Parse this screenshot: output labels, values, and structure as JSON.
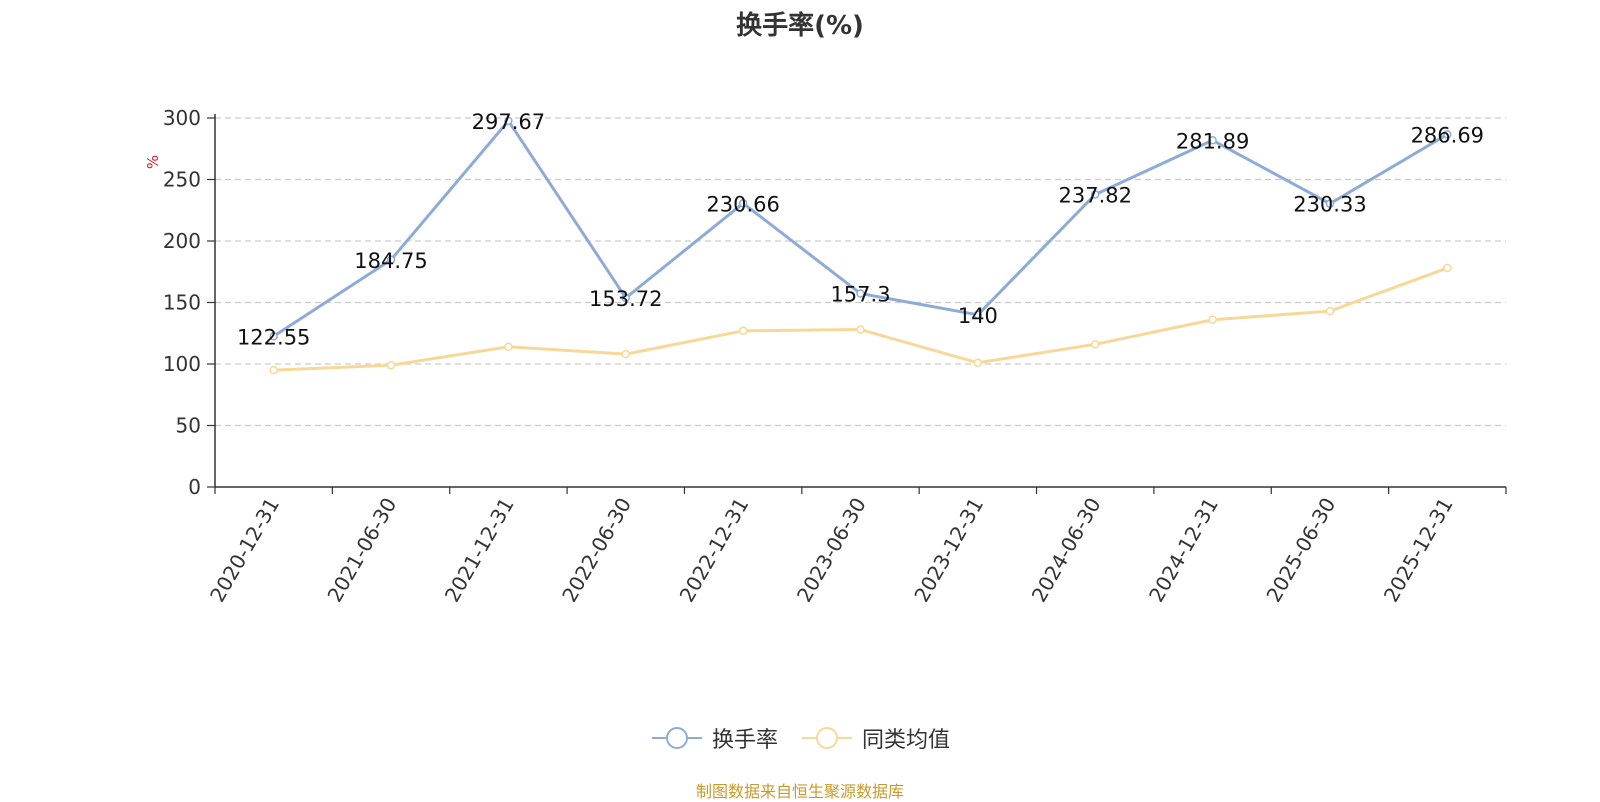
{
  "chart_data": {
    "type": "line",
    "title": "换手率(%)",
    "ylabel": "%",
    "xlabel": "",
    "categories": [
      "2020-12-31",
      "2021-06-30",
      "2021-12-31",
      "2022-06-30",
      "2022-12-31",
      "2023-06-30",
      "2023-12-31",
      "2024-06-30",
      "2024-12-31",
      "2025-06-30",
      "2025-12-31"
    ],
    "ylim": [
      0,
      300
    ],
    "yticks": [
      0,
      50,
      100,
      150,
      200,
      250,
      300
    ],
    "grid": true,
    "legend_position": "bottom",
    "series": [
      {
        "name": "换手率",
        "color": "#8eabd6",
        "values": [
          122.55,
          184.75,
          297.67,
          153.72,
          230.66,
          157.3,
          140,
          237.82,
          281.89,
          230.33,
          286.69
        ],
        "labels": [
          "122.55",
          "184.75",
          "297.67",
          "153.72",
          "230.66",
          "157.3",
          "140",
          "237.82",
          "281.89",
          "230.33",
          "286.69"
        ]
      },
      {
        "name": "同类均值",
        "color": "#f8d898",
        "values": [
          95,
          99,
          114,
          108,
          127,
          128,
          101,
          116,
          136,
          143,
          178
        ]
      }
    ]
  },
  "source_text": "制图数据来自恒生聚源数据库"
}
